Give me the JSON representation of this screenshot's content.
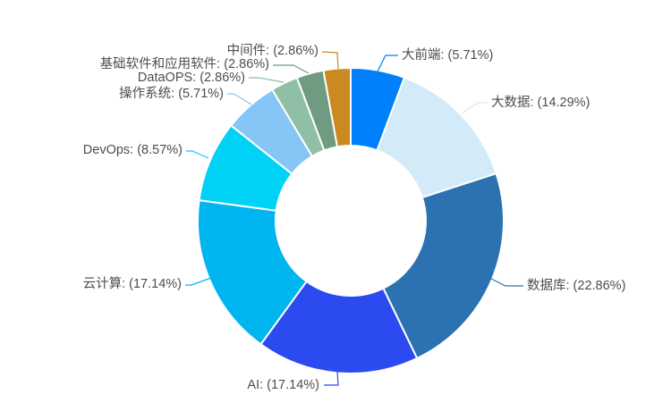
{
  "chart_data": {
    "type": "pie",
    "donut": true,
    "title": "",
    "legend_position": "none",
    "background_color": "#FFFFFF",
    "label_color": "#4D4D4D",
    "slice_border_color": "#FFFFFF",
    "order": "clockwise-from-top",
    "items": [
      {
        "name": "大前端",
        "value": 5.71,
        "label": "大前端: (5.71%)",
        "color": "#0080FA"
      },
      {
        "name": "大数据",
        "value": 14.29,
        "label": "大数据: (14.29%)",
        "color": "#D3EAF8"
      },
      {
        "name": "数据库",
        "value": 22.86,
        "label": "数据库: (22.86%)",
        "color": "#2C72B1"
      },
      {
        "name": "AI",
        "value": 17.14,
        "label": "AI: (17.14%)",
        "color": "#2B4AEF"
      },
      {
        "name": "云计算",
        "value": 17.14,
        "label": "云计算: (17.14%)",
        "color": "#00B5F0"
      },
      {
        "name": "DevOps",
        "value": 8.57,
        "label": "DevOps: (8.57%)",
        "color": "#00D2F5"
      },
      {
        "name": "操作系统",
        "value": 5.71,
        "label": "操作系统: (5.71%)",
        "color": "#85C6F7"
      },
      {
        "name": "DataOPS",
        "value": 2.86,
        "label": "DataOPS: (2.86%)",
        "color": "#8FBFA4"
      },
      {
        "name": "基础软件和应用软件",
        "value": 2.86,
        "label": "基础软件和应用软件: (2.86%)",
        "color": "#6F9B80"
      },
      {
        "name": "中间件",
        "value": 2.86,
        "label": "中间件: (2.86%)",
        "color": "#CB8A21"
      }
    ]
  }
}
